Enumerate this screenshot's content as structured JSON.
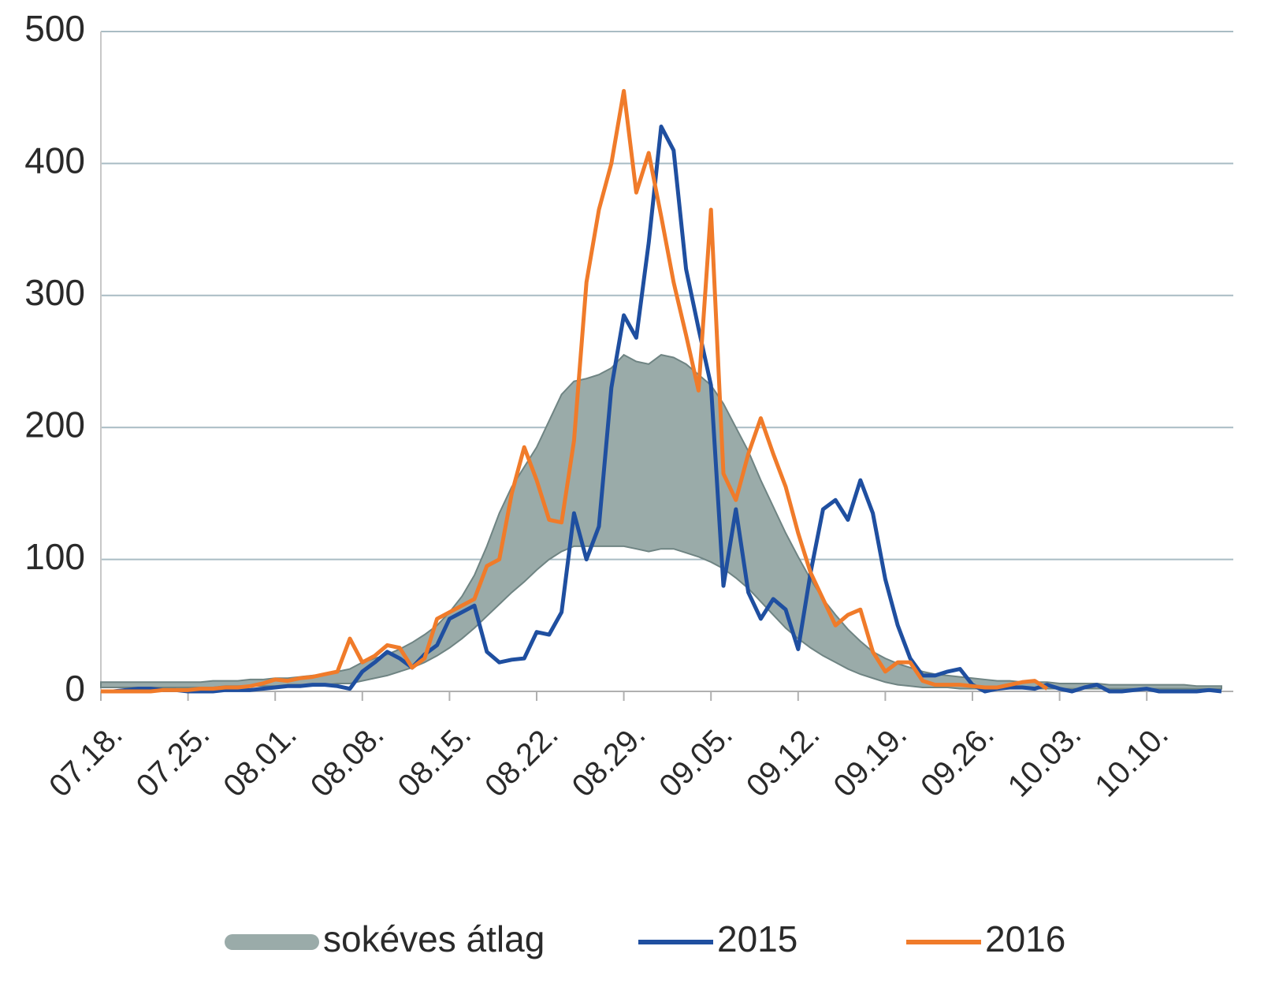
{
  "chart_data": {
    "type": "line",
    "categories": [
      "07.18.",
      null,
      null,
      null,
      null,
      null,
      null,
      "07.25.",
      null,
      null,
      null,
      null,
      null,
      null,
      "08.01.",
      null,
      null,
      null,
      null,
      null,
      null,
      "08.08.",
      null,
      null,
      null,
      null,
      null,
      null,
      "08.15.",
      null,
      null,
      null,
      null,
      null,
      null,
      "08.22.",
      null,
      null,
      null,
      null,
      null,
      null,
      "08.29.",
      null,
      null,
      null,
      null,
      null,
      null,
      "09.05.",
      null,
      null,
      null,
      null,
      null,
      null,
      "09.12.",
      null,
      null,
      null,
      null,
      null,
      null,
      "09.19.",
      null,
      null,
      null,
      null,
      null,
      null,
      "09.26.",
      null,
      null,
      null,
      null,
      null,
      null,
      "10.03.",
      null,
      null,
      null,
      null,
      null,
      null,
      "10.10.",
      null,
      null,
      null,
      null,
      null,
      null
    ],
    "ylim": [
      0,
      500
    ],
    "yticks": [
      0,
      100,
      200,
      300,
      400,
      500
    ],
    "grid": true,
    "legend": "bottom",
    "band": {
      "name": "sokéves átlag",
      "color": "#9aaba9",
      "high": [
        7,
        7,
        7,
        7,
        7,
        7,
        7,
        7,
        7,
        8,
        8,
        8,
        9,
        9,
        10,
        10,
        11,
        12,
        13,
        15,
        17,
        22,
        25,
        28,
        32,
        37,
        43,
        50,
        60,
        72,
        88,
        110,
        135,
        155,
        170,
        185,
        205,
        225,
        235,
        237,
        240,
        245,
        255,
        250,
        248,
        255,
        253,
        248,
        240,
        232,
        218,
        200,
        182,
        160,
        140,
        120,
        102,
        85,
        70,
        58,
        47,
        38,
        30,
        25,
        21,
        18,
        15,
        13,
        12,
        11,
        10,
        9,
        8,
        8,
        7,
        7,
        7,
        6,
        6,
        6,
        6,
        5,
        5,
        5,
        5,
        5,
        5,
        5,
        4,
        4,
        4
      ],
      "low": [
        3,
        3,
        3,
        3,
        3,
        3,
        3,
        3,
        3,
        3,
        4,
        4,
        4,
        4,
        4,
        5,
        5,
        5,
        5,
        6,
        6,
        8,
        10,
        12,
        15,
        18,
        22,
        27,
        33,
        40,
        48,
        57,
        66,
        75,
        83,
        92,
        100,
        106,
        110,
        110,
        110,
        110,
        110,
        108,
        106,
        108,
        108,
        105,
        102,
        98,
        93,
        86,
        78,
        68,
        58,
        48,
        40,
        33,
        27,
        22,
        17,
        13,
        10,
        7,
        5,
        4,
        3,
        3,
        3,
        2,
        2,
        2,
        2,
        2,
        2,
        2,
        2,
        2,
        2,
        2,
        2,
        2,
        2,
        2,
        2,
        2,
        2,
        2,
        2,
        2,
        2
      ]
    },
    "series": [
      {
        "name": "2015",
        "color": "#1f4fa0",
        "values": [
          0,
          0,
          1,
          2,
          2,
          1,
          1,
          0,
          0,
          0,
          1,
          1,
          1,
          2,
          3,
          4,
          4,
          5,
          5,
          4,
          2,
          15,
          22,
          30,
          25,
          18,
          28,
          35,
          55,
          60,
          65,
          30,
          22,
          24,
          25,
          45,
          43,
          60,
          135,
          100,
          125,
          230,
          285,
          268,
          340,
          428,
          410,
          320,
          275,
          232,
          80,
          138,
          75,
          55,
          70,
          62,
          32,
          90,
          138,
          145,
          130,
          160,
          135,
          85,
          50,
          25,
          12,
          12,
          15,
          17,
          5,
          0,
          2,
          3,
          3,
          2,
          5,
          2,
          0,
          3,
          5,
          0,
          0,
          1,
          2,
          0,
          0,
          0,
          0,
          1,
          0
        ]
      },
      {
        "name": "2016",
        "color": "#f07b2a",
        "values": [
          0,
          0,
          0,
          0,
          0,
          1,
          1,
          1,
          2,
          2,
          3,
          3,
          4,
          6,
          9,
          8,
          10,
          11,
          13,
          15,
          40,
          22,
          27,
          35,
          33,
          18,
          25,
          55,
          60,
          65,
          70,
          95,
          100,
          150,
          185,
          160,
          130,
          128,
          190,
          310,
          365,
          400,
          455,
          378,
          408,
          360,
          310,
          270,
          228,
          365,
          165,
          145,
          180,
          207,
          180,
          155,
          120,
          90,
          70,
          50,
          58,
          62,
          30,
          15,
          22,
          22,
          8,
          5,
          5,
          5,
          4,
          3,
          3,
          5,
          7,
          8,
          2,
          null,
          null,
          null,
          null,
          null,
          null,
          null,
          null,
          null,
          null,
          null,
          null,
          null,
          null
        ]
      }
    ]
  }
}
